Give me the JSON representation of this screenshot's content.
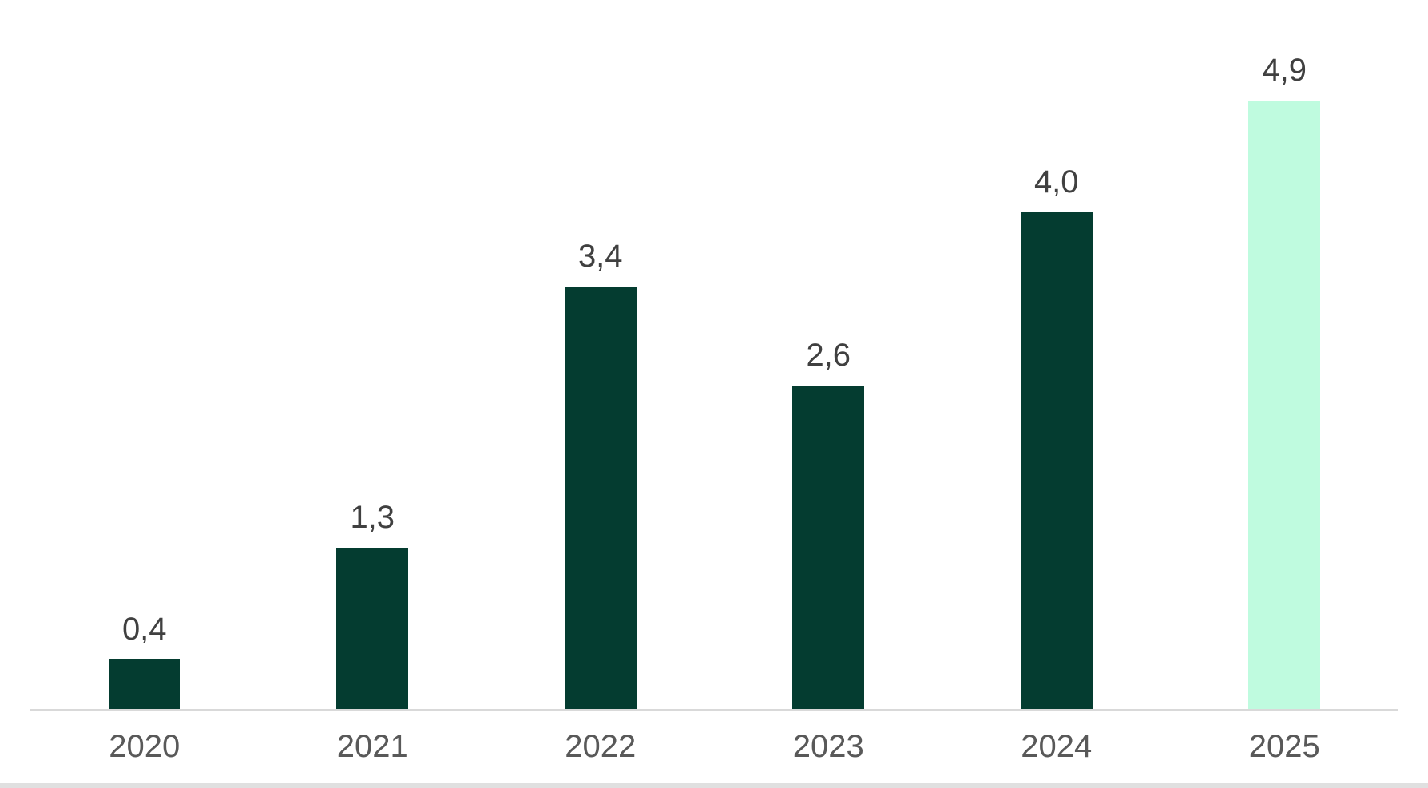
{
  "page": {
    "background": "#ffffff",
    "bottom_border_color": "#e0e0e0"
  },
  "chart_data": {
    "type": "bar",
    "title": "",
    "xlabel": "",
    "ylabel": "",
    "categories": [
      "2020",
      "2021",
      "2022",
      "2023",
      "2024",
      "2025"
    ],
    "values": [
      0.4,
      1.3,
      3.4,
      2.6,
      4.0,
      4.9
    ],
    "value_labels": [
      "0,4",
      "1,3",
      "3,4",
      "2,6",
      "4,0",
      "4,9"
    ],
    "decimal_separator": ",",
    "ylim": [
      0,
      5
    ],
    "grid": false,
    "legend_position": "none",
    "axis_line": "x-only",
    "highlight_index": 5,
    "colors": {
      "bar": "#043c30",
      "bar_highlight": "#bffbdf",
      "value_label": "#404040",
      "axis_label": "#595959",
      "axis_line": "#d9d9d9"
    }
  }
}
